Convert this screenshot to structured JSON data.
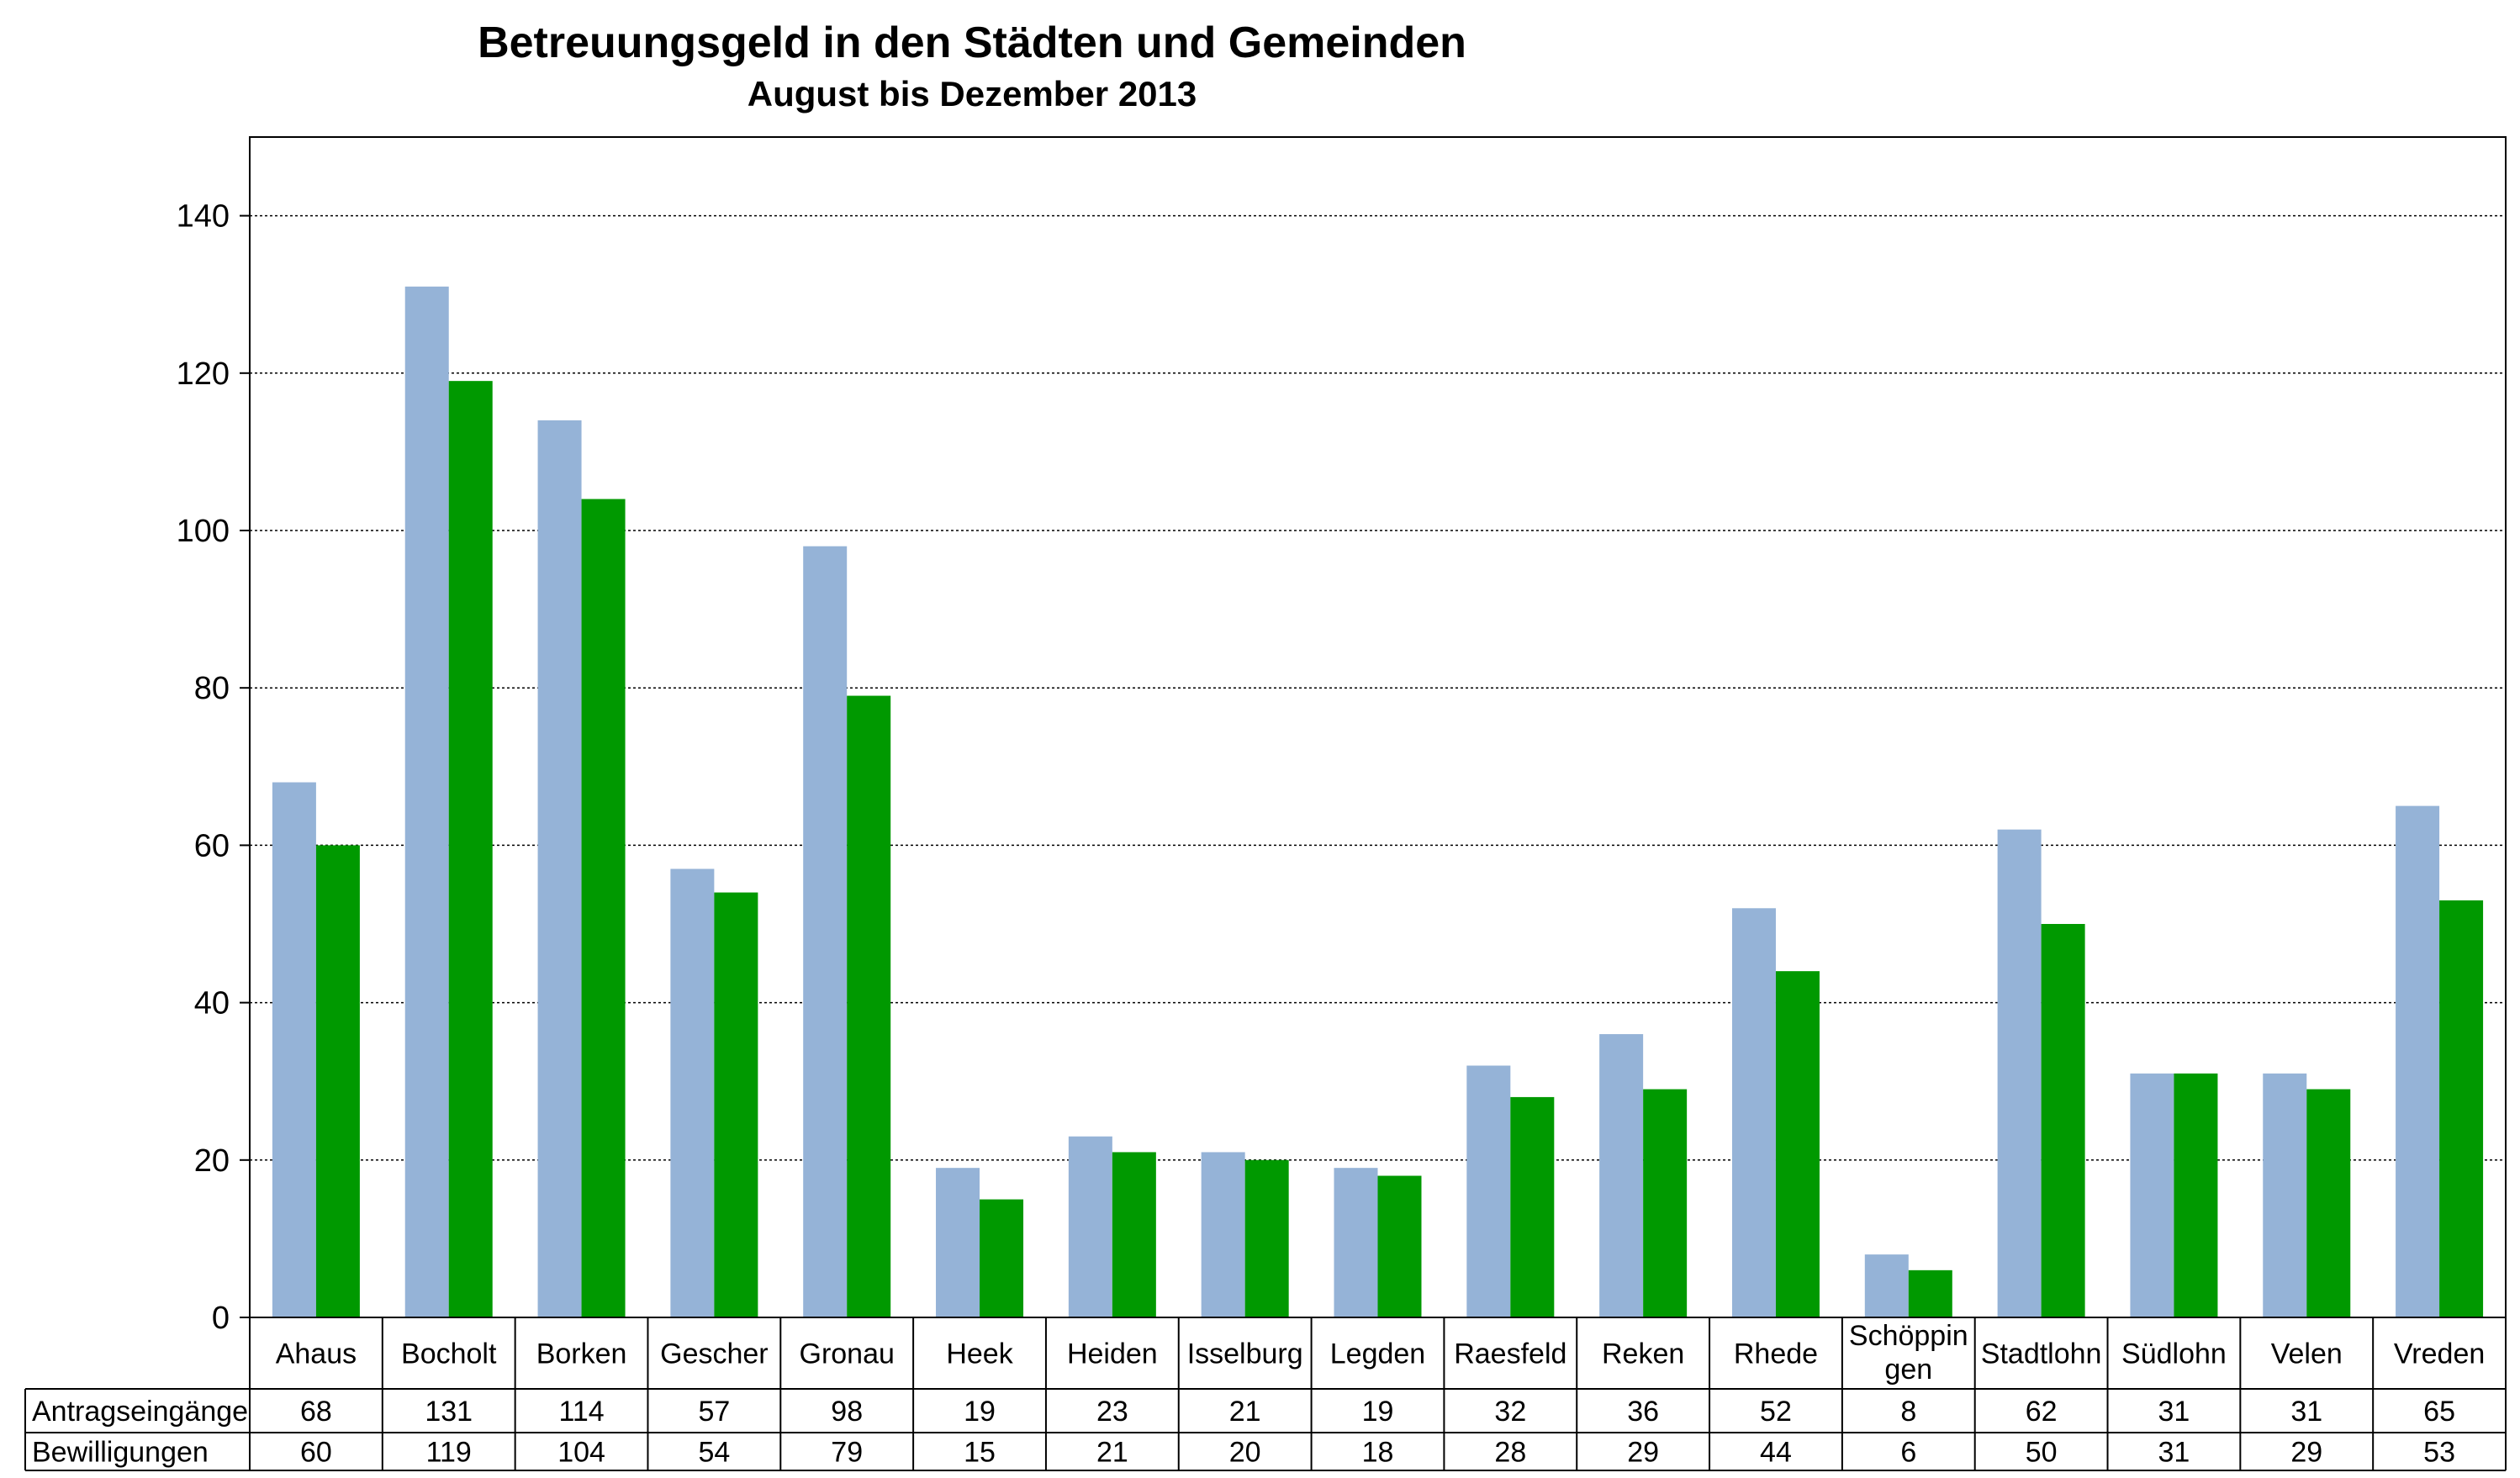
{
  "chart_data": {
    "type": "bar",
    "title": "Betreuungsgeld in den Städten und Gemeinden",
    "subtitle": "August bis Dezember 2013",
    "categories": [
      "Ahaus",
      "Bocholt",
      "Borken",
      "Gescher",
      "Gronau",
      "Heek",
      "Heiden",
      "Isselburg",
      "Legden",
      "Raesfeld",
      "Reken",
      "Rhede",
      "Schöppin gen",
      "Stadtlohn",
      "Südlohn",
      "Velen",
      "Vreden"
    ],
    "series": [
      {
        "name": "Antragseingänge",
        "color": "#95b3d7",
        "values": [
          68,
          131,
          114,
          57,
          98,
          19,
          23,
          21,
          19,
          32,
          36,
          52,
          8,
          62,
          31,
          31,
          65
        ]
      },
      {
        "name": "Bewilligungen",
        "color": "#009900",
        "values": [
          60,
          119,
          104,
          54,
          79,
          15,
          21,
          20,
          18,
          28,
          29,
          44,
          6,
          50,
          31,
          29,
          53
        ]
      }
    ],
    "ylim": [
      0,
      150
    ],
    "yticks": [
      0,
      20,
      40,
      60,
      80,
      100,
      120,
      140
    ],
    "grid": true,
    "grid_style": "dotted",
    "legend": "data-table"
  }
}
